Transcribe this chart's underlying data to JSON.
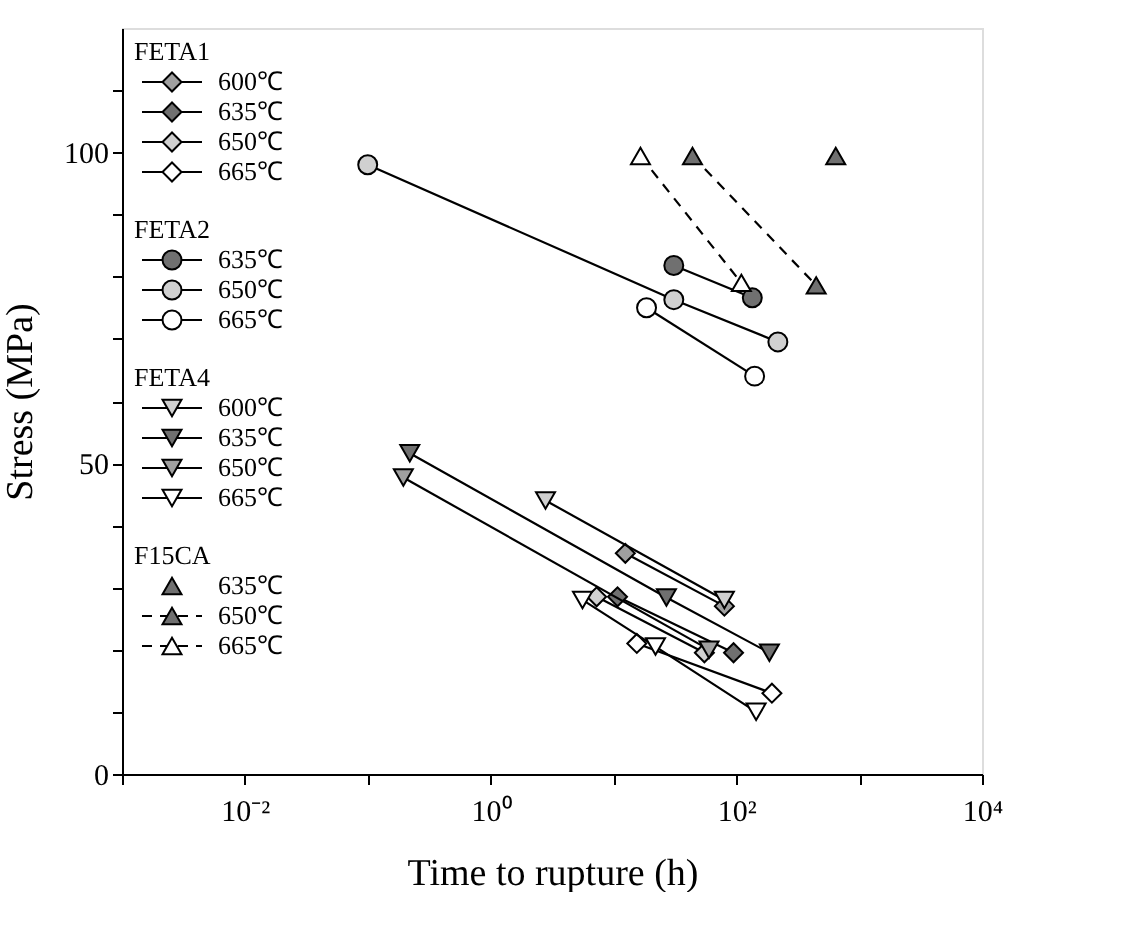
{
  "chart_data": {
    "type": "line",
    "xlabel": "Time to rupture (h)",
    "ylabel": "Stress (MPa)",
    "log": "x",
    "grid": false,
    "legend": "top left",
    "xlim": [
      0.001,
      10000
    ],
    "xticks": [
      {
        "value": 0.001,
        "label": null
      },
      {
        "value": 0.01,
        "label": "10⁻²"
      },
      {
        "value": 0.1,
        "label": null
      },
      {
        "value": 1,
        "label": "10⁰"
      },
      {
        "value": 10,
        "label": null
      },
      {
        "value": 100,
        "label": "10²"
      },
      {
        "value": 1000,
        "label": null
      },
      {
        "value": 10000,
        "label": "10⁴"
      }
    ],
    "ylim": [
      0,
      120
    ],
    "yticks": [
      0,
      {
        "value": 10,
        "label": null
      },
      {
        "value": 20,
        "label": null
      },
      {
        "value": 30,
        "label": null
      },
      {
        "value": 40,
        "label": null
      },
      50,
      {
        "value": 60,
        "label": null
      },
      {
        "value": 70,
        "label": null
      },
      {
        "value": 80,
        "label": null
      },
      {
        "value": 90,
        "label": null
      },
      100,
      {
        "value": 110,
        "label": null
      }
    ],
    "annotations": [
      "FETA1",
      "FETA2",
      "FETA4",
      "F15CA"
    ],
    "series": [
      {
        "name": "600℃",
        "marker": "diamond",
        "line_style": "solid",
        "color": "#a0a0a0",
        "x": [
          12.5,
          80
        ],
        "values": [
          35.5,
          27
        ]
      },
      {
        "name": "635℃",
        "marker": "diamond",
        "line_style": "solid",
        "color": "#707070",
        "x": [
          10.8,
          95
        ],
        "values": [
          28.5,
          19.5
        ]
      },
      {
        "name": "650℃",
        "marker": "diamond",
        "line_style": "solid",
        "color": "#d0d0d0",
        "x": [
          7.3,
          55
        ],
        "values": [
          28.5,
          19.5
        ]
      },
      {
        "name": "665℃",
        "marker": "diamond",
        "line_style": "solid",
        "color": "#ffffff",
        "x": [
          15.5,
          195
        ],
        "values": [
          21,
          13
        ]
      },
      {
        "name": "635℃",
        "marker": "circle",
        "line_style": "solid",
        "color": "#707070",
        "x": [
          31,
          135
        ],
        "values": [
          81.8,
          76.6
        ]
      },
      {
        "name": "650℃",
        "marker": "circle",
        "line_style": "solid",
        "color": "#d0d0d0",
        "x": [
          0.1,
          31,
          218
        ],
        "values": [
          98,
          76.3,
          69.5
        ]
      },
      {
        "name": "665℃",
        "marker": "circle",
        "line_style": "solid",
        "color": "#ffffff",
        "x": [
          18.6,
          141
        ],
        "values": [
          75,
          64
        ]
      },
      {
        "name": "600℃",
        "marker": "triangle-down",
        "line_style": "solid",
        "color": "#d0d0d0",
        "x": [
          2.8,
          80
        ],
        "values": [
          44,
          28
        ]
      },
      {
        "name": "635℃",
        "marker": "triangle-down",
        "line_style": "solid",
        "color": "#707070",
        "x": [
          0.22,
          27,
          186
        ],
        "values": [
          51.6,
          28.4,
          19.5
        ]
      },
      {
        "name": "650℃",
        "marker": "triangle-down",
        "line_style": "solid",
        "color": "#a0a0a0",
        "x": [
          0.195,
          60
        ],
        "values": [
          47.7,
          20
        ]
      },
      {
        "name": "665℃",
        "marker": "triangle-down",
        "line_style": "solid",
        "color": "#ffffff",
        "x": [
          5.6,
          22,
          145
        ],
        "values": [
          28,
          20.5,
          10
        ]
      },
      {
        "name": "635℃",
        "type": "scatter",
        "marker": "triangle",
        "color": "#707070",
        "x": [
          645
        ],
        "values": [
          99.4
        ]
      },
      {
        "name": "650℃",
        "marker": "triangle",
        "line_style": "dashed",
        "color": "#707070",
        "x": [
          44,
          447
        ],
        "values": [
          99.4,
          78.6
        ]
      },
      {
        "name": "665℃",
        "marker": "triangle",
        "line_style": "dashed",
        "color": "#ffffff",
        "x": [
          16.6,
          110
        ],
        "values": [
          99.4,
          79
        ]
      }
    ]
  }
}
